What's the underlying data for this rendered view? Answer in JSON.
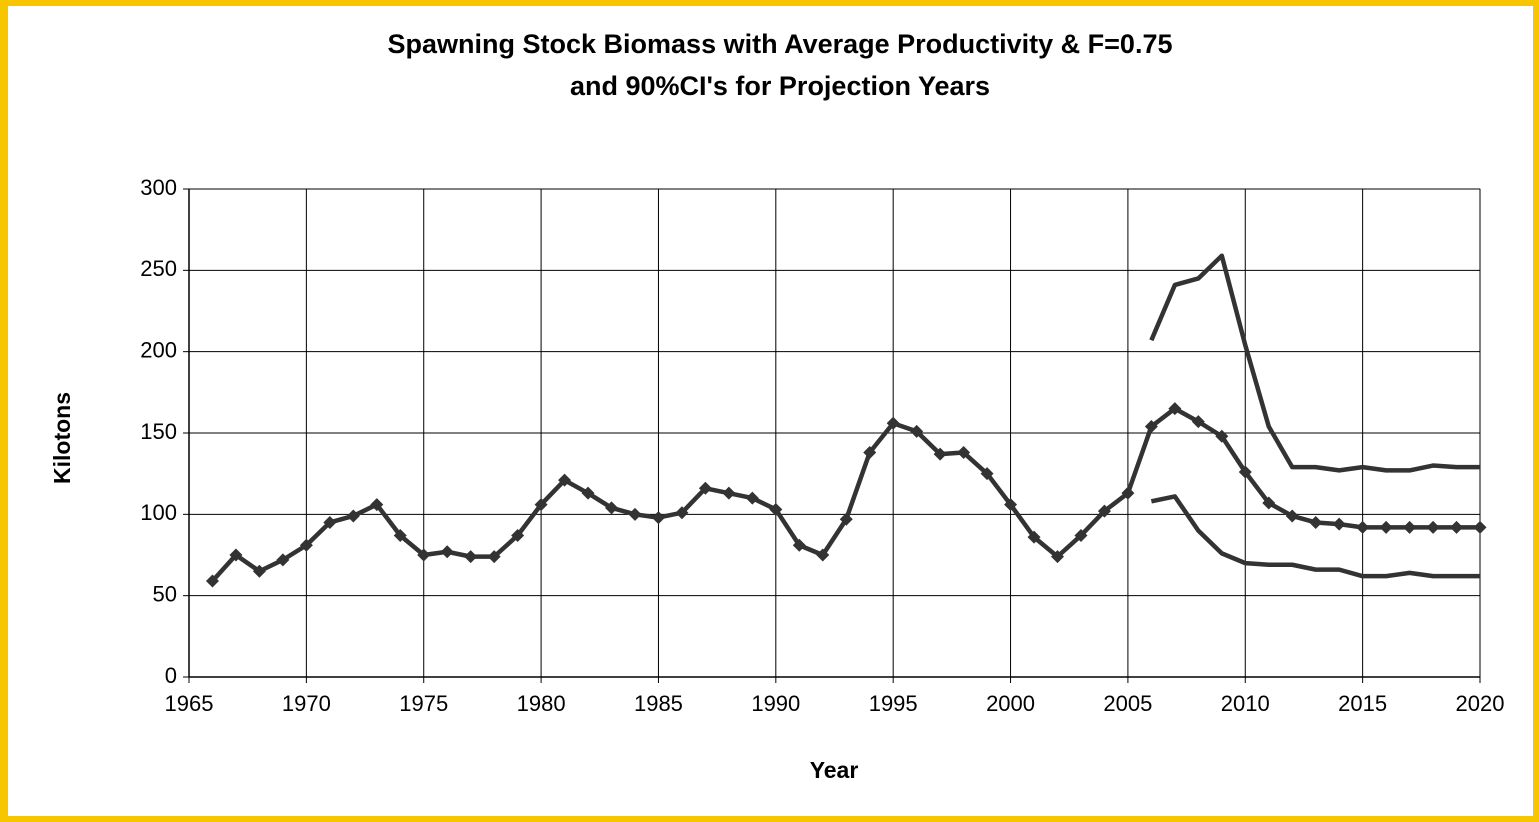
{
  "chart_data": {
    "type": "line",
    "title": "Spawning Stock Biomass with Average Productivity & F=0.75",
    "subtitle": "and 90%CI's for Projection Years",
    "x_label": "Year",
    "y_label": "Kilotons",
    "x": [
      1966,
      1967,
      1968,
      1969,
      1970,
      1971,
      1972,
      1973,
      1974,
      1975,
      1976,
      1977,
      1978,
      1979,
      1980,
      1981,
      1982,
      1983,
      1984,
      1985,
      1986,
      1987,
      1988,
      1989,
      1990,
      1991,
      1992,
      1993,
      1994,
      1995,
      1996,
      1997,
      1998,
      1999,
      2000,
      2001,
      2002,
      2003,
      2004,
      2005,
      2006,
      2007,
      2008,
      2009,
      2010,
      2011,
      2012,
      2013,
      2014,
      2015,
      2016,
      2017,
      2018,
      2019,
      2020
    ],
    "series": [
      {
        "color": "#333333",
        "marker": "diamond",
        "values": [
          59,
          75,
          65,
          72,
          81,
          95,
          99,
          106,
          87,
          75,
          77,
          74,
          74,
          87,
          106,
          121,
          113,
          104,
          100,
          98,
          101,
          116,
          113,
          110,
          103,
          81,
          75,
          97,
          138,
          156,
          151,
          137,
          138,
          125,
          106,
          86,
          74,
          87,
          102,
          113,
          154,
          165,
          157,
          148,
          126,
          107,
          99,
          95,
          94,
          92,
          92,
          92,
          92,
          92,
          92
        ]
      },
      {
        "color": "#333333",
        "values": [
          null,
          null,
          null,
          null,
          null,
          null,
          null,
          null,
          null,
          null,
          null,
          null,
          null,
          null,
          null,
          null,
          null,
          null,
          null,
          null,
          null,
          null,
          null,
          null,
          null,
          null,
          null,
          null,
          null,
          null,
          null,
          null,
          null,
          null,
          null,
          null,
          null,
          null,
          null,
          null,
          207,
          241,
          245,
          259,
          204,
          154,
          129,
          129,
          127,
          129,
          127,
          127,
          130,
          129,
          129
        ]
      },
      {
        "color": "#333333",
        "values": [
          null,
          null,
          null,
          null,
          null,
          null,
          null,
          null,
          null,
          null,
          null,
          null,
          null,
          null,
          null,
          null,
          null,
          null,
          null,
          null,
          null,
          null,
          null,
          null,
          null,
          null,
          null,
          null,
          null,
          null,
          null,
          null,
          null,
          null,
          null,
          null,
          null,
          null,
          null,
          null,
          108,
          111,
          90,
          76,
          70,
          69,
          69,
          66,
          66,
          62,
          62,
          64,
          62,
          62,
          62
        ]
      }
    ],
    "xlim": [
      1965,
      2020
    ],
    "xticks": [
      1965,
      1970,
      1975,
      1980,
      1985,
      1990,
      1995,
      2000,
      2005,
      2010,
      2015,
      2020
    ],
    "ylim": [
      0,
      300
    ],
    "yticks": [
      0,
      50,
      100,
      150,
      200,
      250,
      300
    ],
    "grid": true
  }
}
